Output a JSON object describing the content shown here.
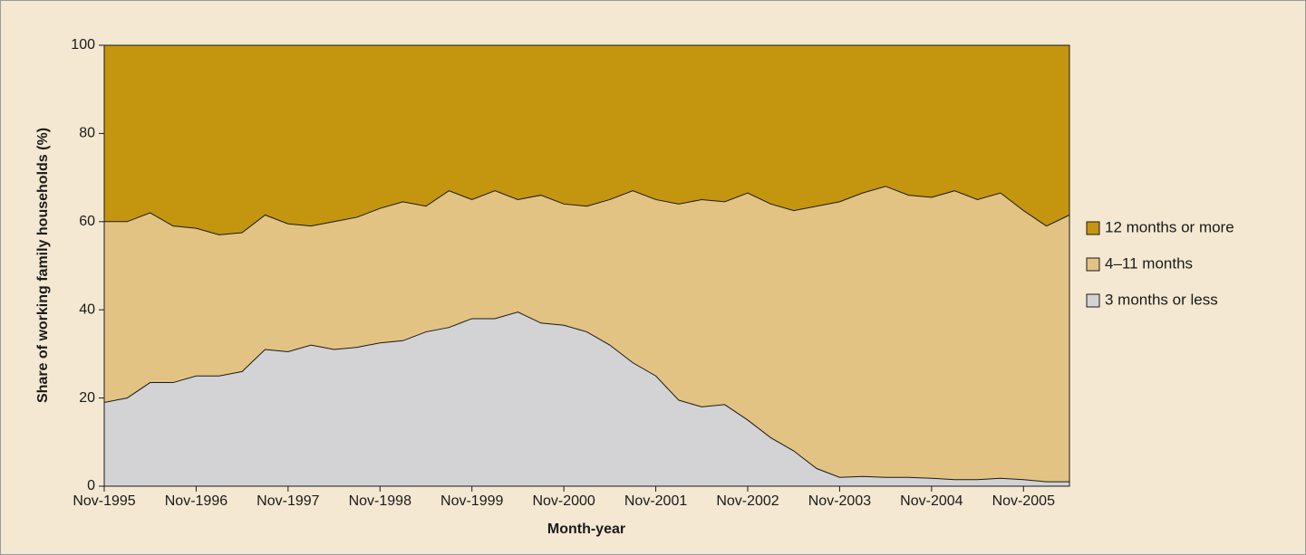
{
  "chart_data": {
    "type": "stacked-area",
    "x_label": "Month-year",
    "y_label": "Share of working family households (%)",
    "categories": [
      "Nov-1995",
      null,
      null,
      null,
      "Nov-1996",
      null,
      null,
      null,
      "Nov-1997",
      null,
      null,
      null,
      "Nov-1998",
      null,
      null,
      null,
      "Nov-1999",
      null,
      null,
      null,
      "Nov-2000",
      null,
      null,
      null,
      "Nov-2001",
      null,
      null,
      null,
      "Nov-2002",
      null,
      null,
      null,
      "Nov-2003",
      null,
      null,
      null,
      "Nov-2004",
      null,
      null,
      null,
      "Nov-2005",
      null,
      null
    ],
    "series": [
      {
        "name": "3 months or less",
        "color": "#d3d3d5",
        "values": [
          19,
          20,
          23.5,
          23.5,
          25,
          25,
          26,
          31,
          30.5,
          32,
          31,
          31.5,
          32.5,
          33,
          35,
          36,
          38,
          38,
          39.5,
          37,
          36.5,
          35,
          32,
          28,
          25,
          19.5,
          18,
          18.5,
          15,
          11,
          8,
          4,
          2,
          2.2,
          2,
          2,
          1.8,
          1.5,
          1.5,
          1.8,
          1.5,
          1,
          1
        ]
      },
      {
        "name": "4–11 months",
        "color": "#e2c383",
        "values": [
          41,
          40,
          38.5,
          35.5,
          33.5,
          32,
          31.5,
          30.5,
          29,
          27,
          29,
          29.5,
          30.5,
          31.5,
          28.5,
          31,
          27,
          29,
          25.5,
          29,
          27.5,
          28.5,
          33,
          39,
          40,
          44.5,
          47,
          46,
          51.5,
          53,
          54.5,
          59.5,
          62.5,
          64.3,
          66,
          64,
          63.7,
          65.5,
          63.5,
          64.7,
          61,
          58,
          60.5
        ]
      },
      {
        "name": "12 months or more",
        "color": "#c4950f",
        "values": [
          40,
          40,
          38,
          41,
          41.5,
          43,
          42.5,
          38.5,
          40.5,
          41,
          40,
          39,
          37,
          35.5,
          36.5,
          33,
          35,
          33,
          35,
          34,
          36,
          36.5,
          35,
          33,
          35,
          36,
          35,
          35.5,
          33.5,
          36,
          37.5,
          36.5,
          35.5,
          33.5,
          32,
          34,
          34.5,
          33,
          35,
          33.5,
          37.5,
          41,
          38.5
        ]
      }
    ],
    "ylim": [
      0,
      100
    ],
    "yticks": [
      0,
      20,
      40,
      60,
      80,
      100
    ],
    "legend": "right"
  }
}
